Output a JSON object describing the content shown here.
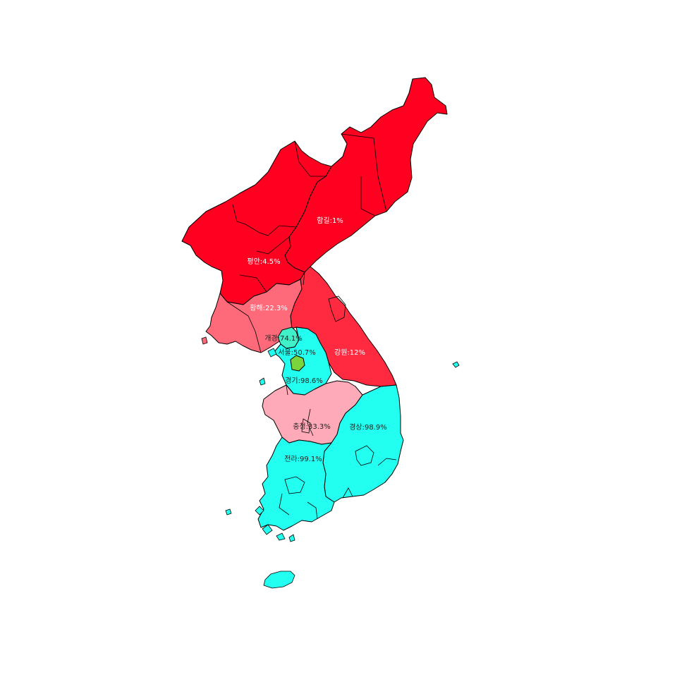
{
  "colors": {
    "north_high": "#ff0020",
    "north_mid": "#ff2a40",
    "north_low": "#ff6a7a",
    "pink": "#ffaab8",
    "cyan": "#22fff0",
    "mint": "#40f0c8",
    "green": "#7ad43c",
    "label_light": "#ffffff",
    "label_dark": "#222222"
  },
  "regions": [
    {
      "id": "hamgyeong",
      "name": "함길",
      "value": "1%",
      "text": "함길:1%"
    },
    {
      "id": "pyeongan",
      "name": "평안",
      "value": "4.5%",
      "text": "평안:4.5%"
    },
    {
      "id": "hwanghae",
      "name": "황해",
      "value": "22.3%",
      "text": "황해:22.3%"
    },
    {
      "id": "gangwon",
      "name": "강원",
      "value": "12%",
      "text": "강원:12%"
    },
    {
      "id": "gaeseong",
      "name": "개경",
      "value": "74.1%",
      "text": "개경:74.1%"
    },
    {
      "id": "seoul",
      "name": "서울",
      "value": "50.7%",
      "text": "서울:50.7%"
    },
    {
      "id": "gyeonggi",
      "name": "경기",
      "value": "98.6%",
      "text": "경기:98.6%"
    },
    {
      "id": "chungcheong",
      "name": "충청",
      "value": "33.3%",
      "text": "충청:33.3%"
    },
    {
      "id": "gyeongsang",
      "name": "경상",
      "value": "98.9%",
      "text": "경상:98.9%"
    },
    {
      "id": "jeolla",
      "name": "전라",
      "value": "99.1%",
      "text": "전라:99.1%"
    }
  ]
}
